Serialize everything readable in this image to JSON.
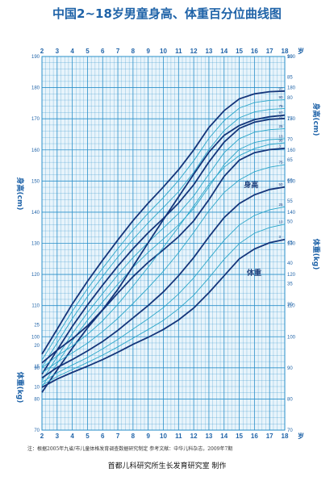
{
  "title": "中国2~18岁男童身高、体重百分位曲线图",
  "age_unit": "岁",
  "height_axis_label": "身高(cm)",
  "weight_axis_label": "体重(kg)",
  "note": "注：根据2005年九省/市儿童体格发育调查数据研究制定    参考文献：中华儿科杂志，2009年7期",
  "credit": "首都儿科研究所生长发育研究室  制作",
  "colors": {
    "grid": "#2a8fc9",
    "grid_bg": "#e8f4fb",
    "curve_main": "#14357a",
    "curve_mid": "#2aa6c9",
    "text": "#1f63a8"
  },
  "chart_data": {
    "type": "line",
    "x_label": "岁",
    "x_ticks": [
      2,
      3,
      4,
      5,
      6,
      7,
      8,
      9,
      10,
      11,
      12,
      13,
      14,
      15,
      16,
      17,
      18
    ],
    "xlim": [
      2,
      18
    ],
    "height": {
      "curve_label": "身高",
      "ylim": [
        70,
        190
      ],
      "y_ticks": [
        70,
        80,
        90,
        100,
        110,
        120,
        130,
        140,
        150,
        160,
        170,
        180,
        190
      ],
      "percentiles": [
        "3",
        "10",
        "25",
        "50",
        "75",
        "90",
        "97"
      ],
      "x": [
        2,
        3,
        4,
        5,
        6,
        7,
        8,
        9,
        10,
        11,
        12,
        13,
        14,
        15,
        16,
        17,
        18
      ],
      "series": [
        {
          "name": "3",
          "values": [
            82.1,
            89.3,
            96.3,
            102.8,
            108.6,
            114.0,
            119.3,
            123.9,
            127.9,
            132.1,
            137.2,
            144.0,
            151.5,
            156.7,
            159.1,
            160.1,
            160.5
          ]
        },
        {
          "name": "10",
          "values": [
            84.0,
            91.4,
            98.7,
            105.3,
            111.2,
            116.9,
            122.3,
            127.1,
            131.4,
            135.9,
            141.2,
            148.1,
            155.3,
            160.2,
            162.4,
            163.3,
            163.6
          ]
        },
        {
          "name": "25",
          "values": [
            85.9,
            93.5,
            101.0,
            107.7,
            113.9,
            119.9,
            125.4,
            130.3,
            134.9,
            139.6,
            145.2,
            152.2,
            159.1,
            163.6,
            165.7,
            166.5,
            166.8
          ]
        },
        {
          "name": "50",
          "values": [
            88.0,
            95.7,
            103.3,
            110.2,
            116.6,
            122.7,
            128.3,
            133.4,
            138.0,
            142.9,
            148.8,
            156.1,
            162.5,
            166.9,
            168.9,
            169.8,
            170.1
          ]
        },
        {
          "name": "75",
          "values": [
            90.2,
            98.0,
            105.8,
            112.9,
            119.4,
            125.6,
            131.3,
            136.6,
            141.5,
            146.6,
            152.8,
            160.1,
            166.2,
            170.3,
            172.2,
            173.0,
            173.3
          ]
        },
        {
          "name": "90",
          "values": [
            92.5,
            100.4,
            108.2,
            115.4,
            122.0,
            128.3,
            134.3,
            139.7,
            144.7,
            150.2,
            156.5,
            163.7,
            169.4,
            173.4,
            175.2,
            175.9,
            176.1
          ]
        },
        {
          "name": "97",
          "values": [
            94.4,
            102.4,
            110.5,
            117.8,
            124.6,
            131.1,
            137.3,
            142.9,
            148.1,
            153.6,
            160.0,
            167.2,
            172.6,
            176.4,
            178.0,
            178.7,
            178.9
          ]
        }
      ]
    },
    "weight": {
      "curve_label": "体重",
      "ylim": [
        5,
        90
      ],
      "y_ticks_upper": [
        30,
        35,
        40,
        45,
        50,
        55,
        60,
        65,
        70,
        75,
        80,
        85,
        90
      ],
      "y_ticks_lower": [
        10,
        15,
        20,
        25
      ],
      "percentiles": [
        "3",
        "10",
        "25",
        "50",
        "75",
        "90",
        "97"
      ],
      "x": [
        2,
        3,
        4,
        5,
        6,
        7,
        8,
        9,
        10,
        11,
        12,
        13,
        14,
        15,
        16,
        17,
        18
      ],
      "series": [
        {
          "name": "3",
          "values": [
            9.9,
            11.9,
            13.5,
            15.0,
            16.6,
            18.4,
            20.3,
            22.0,
            23.9,
            26.2,
            29.1,
            32.8,
            36.9,
            41.0,
            43.4,
            44.9,
            45.7
          ]
        },
        {
          "name": "10",
          "values": [
            10.4,
            12.5,
            14.2,
            15.9,
            17.7,
            19.7,
            21.8,
            23.9,
            26.1,
            28.9,
            32.2,
            36.4,
            40.9,
            44.7,
            47.2,
            48.6,
            49.4
          ]
        },
        {
          "name": "25",
          "values": [
            11.1,
            13.4,
            15.3,
            17.1,
            19.2,
            21.5,
            24.0,
            26.5,
            29.2,
            32.5,
            36.4,
            41.0,
            45.5,
            49.2,
            51.5,
            52.9,
            53.6
          ]
        },
        {
          "name": "50",
          "values": [
            12.2,
            14.7,
            16.6,
            18.7,
            21.0,
            23.7,
            26.7,
            29.7,
            33.0,
            36.9,
            41.3,
            46.3,
            51.0,
            54.4,
            56.5,
            57.8,
            58.4
          ]
        },
        {
          "name": "75",
          "values": [
            13.4,
            16.0,
            18.2,
            20.6,
            23.4,
            26.6,
            30.2,
            34.0,
            38.0,
            42.5,
            47.4,
            52.6,
            57.1,
            60.1,
            62.1,
            63.2,
            63.8
          ]
        },
        {
          "name": "90",
          "values": [
            14.6,
            17.5,
            19.9,
            22.7,
            26.0,
            30.0,
            34.4,
            39.0,
            43.8,
            48.7,
            53.8,
            59.0,
            63.2,
            66.0,
            67.7,
            68.7,
            69.1
          ]
        },
        {
          "name": "97",
          "values": [
            15.8,
            18.9,
            21.6,
            24.8,
            28.7,
            33.6,
            39.2,
            44.9,
            50.5,
            56.0,
            61.5,
            66.8,
            70.9,
            73.3,
            74.7,
            75.4,
            75.8
          ]
        }
      ]
    }
  }
}
